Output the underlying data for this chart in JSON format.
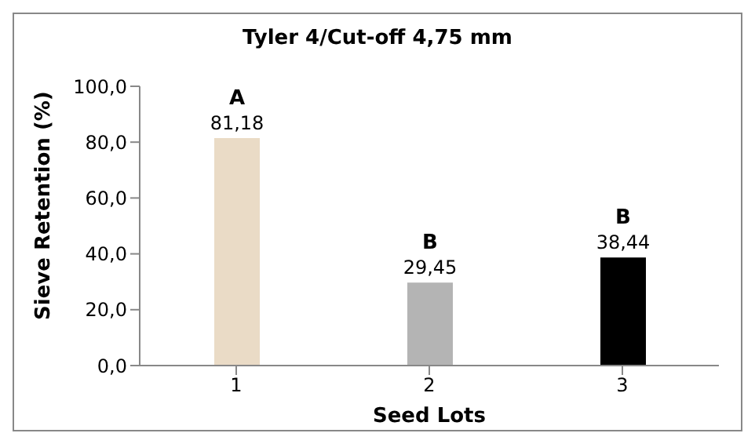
{
  "chart_data": {
    "type": "bar",
    "title": "Tyler 4/Cut-off 4,75 mm",
    "xlabel": "Seed Lots",
    "ylabel": "Sieve Retention (%)",
    "categories": [
      "1",
      "2",
      "3"
    ],
    "values": [
      81.18,
      29.45,
      38.44
    ],
    "colors": [
      "#eadbc6",
      "#b4b4b4",
      "#000000"
    ],
    "value_labels": [
      "81,18",
      "29,45",
      "38,44"
    ],
    "annotations": [
      {
        "text": "A",
        "x": "1",
        "y": 81.18
      },
      {
        "text": "B",
        "x": "2",
        "y": 29.45
      },
      {
        "text": "B",
        "x": "3",
        "y": 38.44
      }
    ],
    "ylim": [
      0,
      100
    ],
    "yticks": [
      {
        "value": 0,
        "label": "0,0"
      },
      {
        "value": 20,
        "label": "20,0"
      },
      {
        "value": 40,
        "label": "40,0"
      },
      {
        "value": 60,
        "label": "60,0"
      },
      {
        "value": 80,
        "label": "80,0"
      },
      {
        "value": 100,
        "label": "100,0"
      }
    ],
    "grid": false,
    "legend": false
  }
}
